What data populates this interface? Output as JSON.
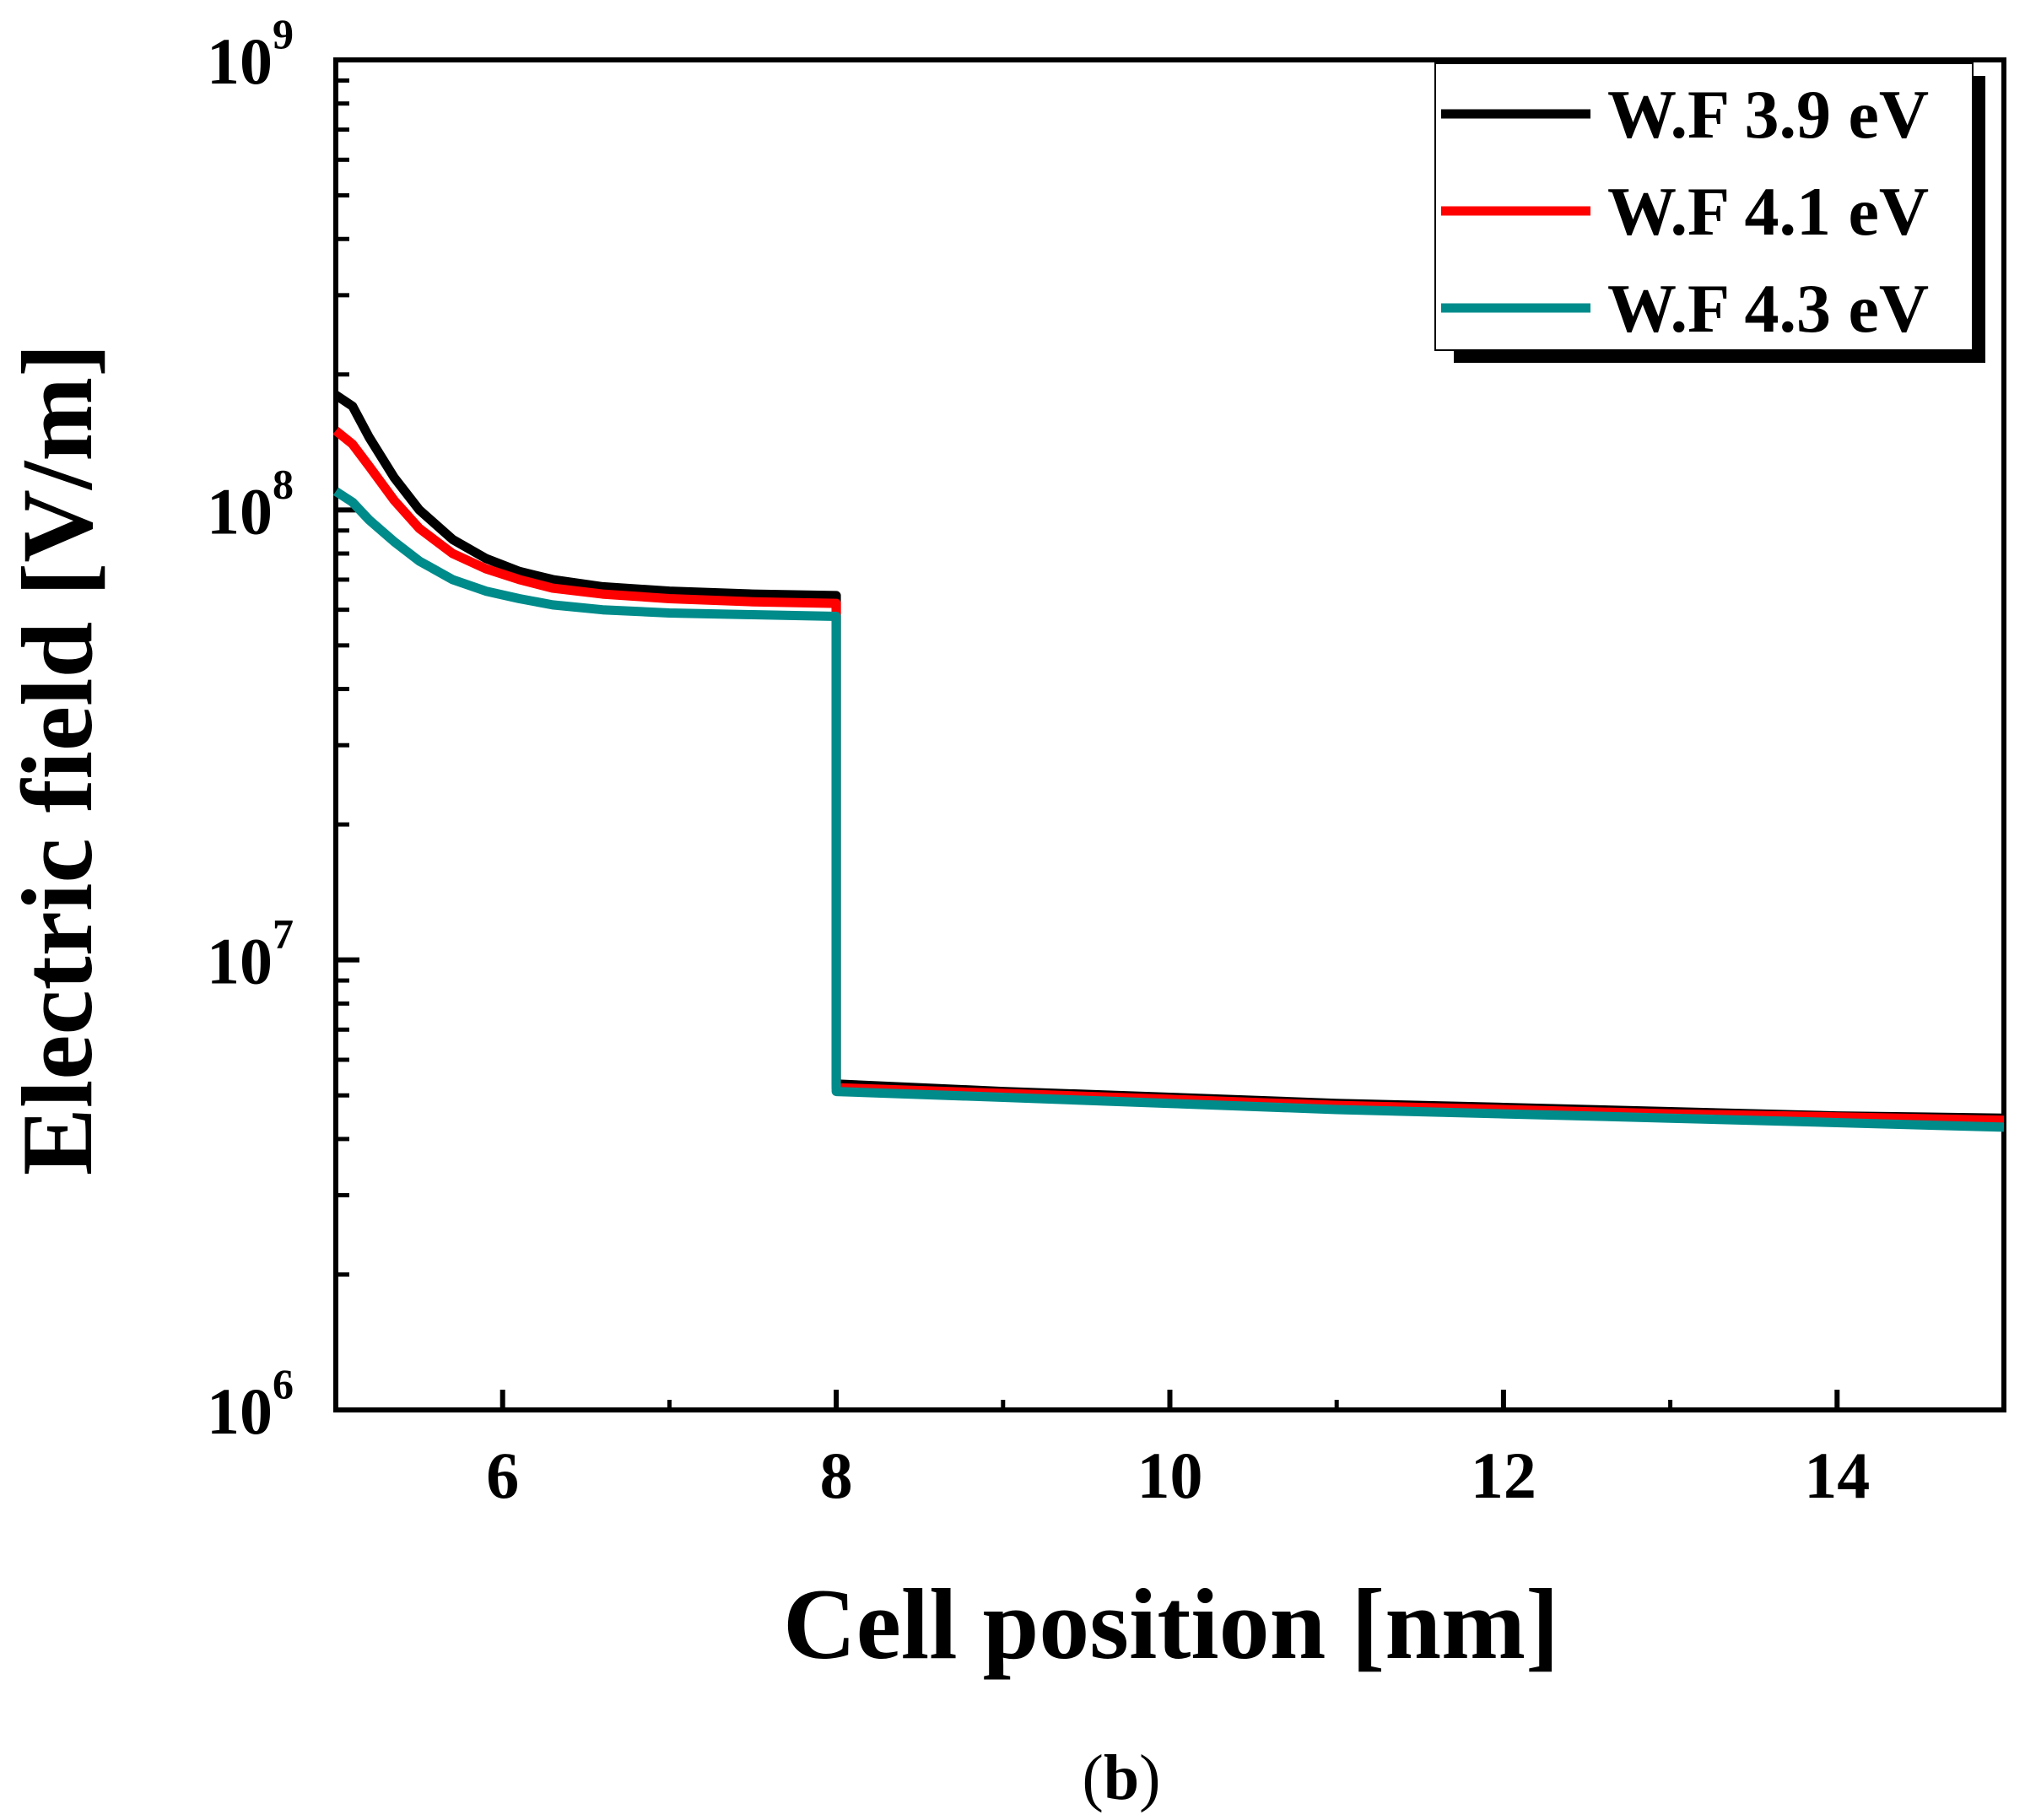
{
  "chart_data": {
    "type": "line",
    "xlabel": "Cell position [nm]",
    "ylabel": "Electric field [V/m]",
    "xlim": [
      5,
      15
    ],
    "ylim": [
      1000000,
      1000000000
    ],
    "yscale": "log",
    "xticks": [
      {
        "value": 6,
        "label": "6"
      },
      {
        "value": 8,
        "label": "8"
      },
      {
        "value": 10,
        "label": "10"
      },
      {
        "value": 12,
        "label": "12"
      },
      {
        "value": 14,
        "label": "14"
      }
    ],
    "yticks": [
      {
        "value": 1000000,
        "base": "10",
        "exp": "6"
      },
      {
        "value": 10000000,
        "base": "10",
        "exp": "7"
      },
      {
        "value": 100000000,
        "base": "10",
        "exp": "8"
      },
      {
        "value": 1000000000,
        "base": "10",
        "exp": "9"
      }
    ],
    "legend_position": "top-right",
    "series": [
      {
        "name": "W.F 3.9 eV",
        "color": "#000000",
        "x": [
          5.0,
          5.1,
          5.2,
          5.35,
          5.5,
          5.7,
          5.9,
          6.1,
          6.3,
          6.6,
          7.0,
          7.5,
          8.0,
          8.0,
          9.0,
          10.0,
          11.0,
          12.0,
          13.0,
          14.0,
          15.0
        ],
        "y": [
          180000000,
          170000000,
          145000000,
          118000000,
          100000000,
          86000000,
          78000000,
          73000000,
          70000000,
          67500000,
          66000000,
          65000000,
          64500000,
          5300000,
          5100000,
          4950000,
          4800000,
          4700000,
          4600000,
          4500000,
          4450000
        ]
      },
      {
        "name": "W.F 4.1 eV",
        "color": "#ff0000",
        "x": [
          5.0,
          5.1,
          5.2,
          5.35,
          5.5,
          5.7,
          5.9,
          6.1,
          6.3,
          6.6,
          7.0,
          7.5,
          8.0,
          8.0,
          9.0,
          10.0,
          11.0,
          12.0,
          13.0,
          14.0,
          15.0
        ],
        "y": [
          150000000,
          140000000,
          125000000,
          105000000,
          91000000,
          80000000,
          74000000,
          70000000,
          67000000,
          65000000,
          63500000,
          62500000,
          62000000,
          5200000,
          5050000,
          4900000,
          4750000,
          4650000,
          4550000,
          4480000,
          4400000
        ]
      },
      {
        "name": "W.F 4.3 eV",
        "color": "#008b8b",
        "x": [
          5.0,
          5.1,
          5.2,
          5.35,
          5.5,
          5.7,
          5.9,
          6.1,
          6.3,
          6.6,
          7.0,
          7.5,
          8.0,
          8.0,
          9.0,
          10.0,
          11.0,
          12.0,
          13.0,
          14.0,
          15.0
        ],
        "y": [
          110000000,
          104000000,
          95000000,
          85000000,
          77000000,
          70000000,
          66000000,
          63500000,
          61500000,
          60000000,
          59000000,
          58500000,
          58000000,
          5100000,
          4950000,
          4800000,
          4650000,
          4550000,
          4450000,
          4350000,
          4250000
        ]
      }
    ]
  },
  "caption": {
    "open": "(",
    "letter": "b",
    "close": ")"
  }
}
